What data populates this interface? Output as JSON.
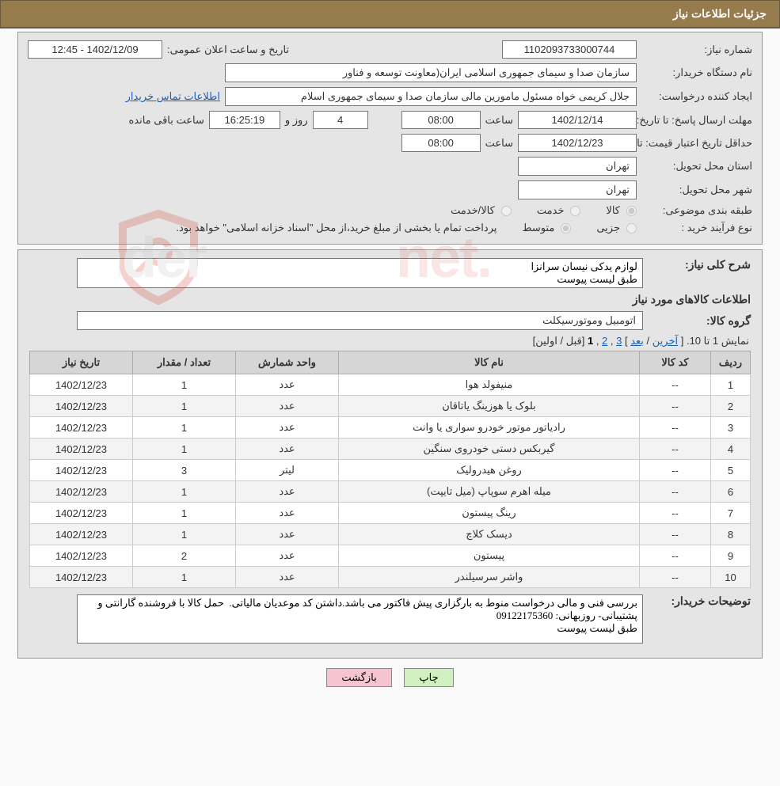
{
  "header": {
    "title": "جزئیات اطلاعات نیاز"
  },
  "fields": {
    "need_no_label": "شماره نیاز:",
    "need_no": "1102093733000744",
    "announce_label": "تاریخ و ساعت اعلان عمومی:",
    "announce": "1402/12/09 - 12:45",
    "buyer_org_label": "نام دستگاه خریدار:",
    "buyer_org": "سازمان صدا و سیمای جمهوری اسلامی ایران(معاونت توسعه و فناور",
    "requester_label": "ایجاد کننده درخواست:",
    "requester": "جلال کریمی خواه مسئول مامورین مالی  سازمان صدا و سیمای جمهوری اسلام",
    "contact_link": "اطلاعات تماس خریدار",
    "deadline_label": "مهلت ارسال پاسخ:",
    "to_date_label": "تا تاریخ:",
    "deadline_date": "1402/12/14",
    "time_label": "ساعت",
    "deadline_time": "08:00",
    "days_val": "4",
    "days_label": "روز و",
    "countdown": "16:25:19",
    "remaining_label": "ساعت باقی مانده",
    "validity_label": "حداقل تاریخ اعتبار قیمت:",
    "validity_date": "1402/12/23",
    "validity_time": "08:00",
    "province_label": "استان محل تحویل:",
    "province": "تهران",
    "city_label": "شهر محل تحویل:",
    "city": "تهران",
    "category_label": "طبقه بندی موضوعی:",
    "cat_goods": "کالا",
    "cat_service": "خدمت",
    "cat_both": "کالا/خدمت",
    "purchase_type_label": "نوع فرآیند خرید :",
    "pt_partial": "جزیی",
    "pt_medium": "متوسط",
    "purchase_note": "پرداخت تمام یا بخشی از مبلغ خرید،از محل \"اسناد خزانه اسلامی\" خواهد بود.",
    "general_desc_label": "شرح کلی نیاز:",
    "general_desc": "لوازم یدکی نیسان سرانزا\nطبق لیست پیوست",
    "items_header": "اطلاعات کالاهای مورد نیاز",
    "group_label": "گروه کالا:",
    "group": "اتومبیل وموتورسیکلت",
    "buyer_notes_label": "توضیحات خریدار:",
    "buyer_notes": "بررسی فنی و مالی درخواست منوط به بارگزاری پیش فاکتور می باشد.داشتن کد موعدیان مالیاتی.  حمل کالا با فروشنده گارانتی و پشتیبانی- روزبهانی: 09122175360\nطبق لیست پیوست"
  },
  "pagination": {
    "text_prefix": "نمایش 1 تا 10.",
    "last": "آخرین",
    "next": "بعد",
    "p3": "3",
    "p2": "2",
    "p1": "1",
    "prev": "قبل",
    "first": "اولین"
  },
  "table": {
    "headers": {
      "row": "ردیف",
      "code": "کد کالا",
      "name": "نام کالا",
      "unit": "واحد شمارش",
      "qty": "تعداد / مقدار",
      "date": "تاریخ نیاز"
    },
    "rows": [
      {
        "n": "1",
        "code": "--",
        "name": "منیفولد هوا",
        "unit": "عدد",
        "qty": "1",
        "date": "1402/12/23"
      },
      {
        "n": "2",
        "code": "--",
        "name": "بلوک یا هوزینگ یاتاقان",
        "unit": "عدد",
        "qty": "1",
        "date": "1402/12/23"
      },
      {
        "n": "3",
        "code": "--",
        "name": "رادیاتور موتور خودرو سواری یا وانت",
        "unit": "عدد",
        "qty": "1",
        "date": "1402/12/23"
      },
      {
        "n": "4",
        "code": "--",
        "name": "گیربکس دستی خودروی سنگین",
        "unit": "عدد",
        "qty": "1",
        "date": "1402/12/23"
      },
      {
        "n": "5",
        "code": "--",
        "name": "روغن هیدرولیک",
        "unit": "لیتر",
        "qty": "3",
        "date": "1402/12/23"
      },
      {
        "n": "6",
        "code": "--",
        "name": "میله اهرم سوپاپ (میل تایپت)",
        "unit": "عدد",
        "qty": "1",
        "date": "1402/12/23"
      },
      {
        "n": "7",
        "code": "--",
        "name": "رینگ پیستون",
        "unit": "عدد",
        "qty": "1",
        "date": "1402/12/23"
      },
      {
        "n": "8",
        "code": "--",
        "name": "دیسک کلاچ",
        "unit": "عدد",
        "qty": "1",
        "date": "1402/12/23"
      },
      {
        "n": "9",
        "code": "--",
        "name": "پیستون",
        "unit": "عدد",
        "qty": "2",
        "date": "1402/12/23"
      },
      {
        "n": "10",
        "code": "--",
        "name": "واشر سرسیلندر",
        "unit": "عدد",
        "qty": "1",
        "date": "1402/12/23"
      }
    ]
  },
  "buttons": {
    "print": "چاپ",
    "back": "بازگشت"
  },
  "watermark": {
    "text": "AriaTender.net",
    "shield_color": "#d94a3c"
  }
}
